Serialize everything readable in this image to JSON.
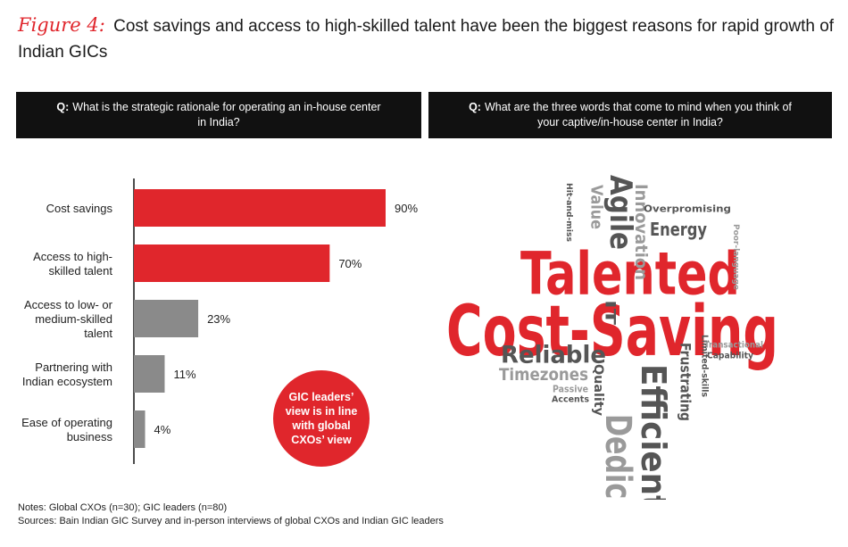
{
  "header": {
    "figure_label": "Figure 4:",
    "title": "Cost savings and access to high-skilled talent have been the biggest reasons for rapid growth of Indian GICs"
  },
  "left_panel": {
    "question_prefix": "Q:",
    "question": "What is the strategic rationale for operating an in-house center in India?"
  },
  "right_panel": {
    "question_prefix": "Q:",
    "question": "What are the three words that come to mind when you think of your captive/in-house center in India?"
  },
  "callout": "GIC leaders’ view is in line with global CXOs’ view",
  "colors": {
    "accent_red": "#e0262c",
    "bar_gray": "#8a8a8a",
    "dark_gray": "#555555",
    "light_gray": "#9a9a9a",
    "black": "#111111"
  },
  "chart_data": [
    {
      "type": "bar",
      "orientation": "horizontal",
      "categories": [
        "Cost savings",
        "Access to high-skilled talent",
        "Access to low- or medium-skilled talent",
        "Partnering with Indian ecosystem",
        "Ease of operating business"
      ],
      "category_lines": [
        [
          "Cost savings"
        ],
        [
          "Access to high-",
          "skilled talent"
        ],
        [
          "Access to low- or",
          "medium-skilled",
          "talent"
        ],
        [
          "Partnering with",
          "Indian ecosystem"
        ],
        [
          "Ease of operating",
          "business"
        ]
      ],
      "values": [
        90,
        70,
        23,
        11,
        4
      ],
      "value_labels": [
        "90%",
        "70%",
        "23%",
        "11%",
        "4%"
      ],
      "bar_colors": [
        "#e0262c",
        "#e0262c",
        "#8a8a8a",
        "#8a8a8a",
        "#8a8a8a"
      ],
      "xlim": [
        0,
        100
      ],
      "grid": false
    }
  ],
  "word_cloud": {
    "words": [
      {
        "text": "Talented",
        "color": "#e0262c",
        "rotate": 0
      },
      {
        "text": "Cost-Saving",
        "color": "#e0262c",
        "rotate": 0
      },
      {
        "text": "Reliable",
        "color": "#555555",
        "rotate": 0
      },
      {
        "text": "Dedicated",
        "color": "#9a9a9a",
        "rotate": 90
      },
      {
        "text": "Efficient",
        "color": "#555555",
        "rotate": 90
      },
      {
        "text": "Agile",
        "color": "#555555",
        "rotate": 90
      },
      {
        "text": "Innovation",
        "color": "#9a9a9a",
        "rotate": 90
      },
      {
        "text": "Value",
        "color": "#9a9a9a",
        "rotate": 90
      },
      {
        "text": "Energy",
        "color": "#555555",
        "rotate": 0
      },
      {
        "text": "Overpromising",
        "color": "#555555",
        "rotate": 0
      },
      {
        "text": "Hit-and-miss",
        "color": "#555555",
        "rotate": 90
      },
      {
        "text": "Poor-language",
        "color": "#9a9a9a",
        "rotate": 90
      },
      {
        "text": "IT",
        "color": "#555555",
        "rotate": 90
      },
      {
        "text": "Timezones",
        "color": "#9a9a9a",
        "rotate": 0
      },
      {
        "text": "Quality",
        "color": "#555555",
        "rotate": 90
      },
      {
        "text": "Passive",
        "color": "#9a9a9a",
        "rotate": 0
      },
      {
        "text": "Accents",
        "color": "#555555",
        "rotate": 0
      },
      {
        "text": "Frustrating",
        "color": "#555555",
        "rotate": 90
      },
      {
        "text": "Limited-skills",
        "color": "#555555",
        "rotate": 90
      },
      {
        "text": "Transactional",
        "color": "#9a9a9a",
        "rotate": 0
      },
      {
        "text": "Capability",
        "color": "#555555",
        "rotate": 0
      }
    ]
  },
  "footer": {
    "notes": "Notes: Global CXOs (n=30); GIC leaders (n=80)",
    "sources": "Sources: Bain Indian GIC Survey and in-person interviews of global CXOs and Indian GIC leaders"
  }
}
